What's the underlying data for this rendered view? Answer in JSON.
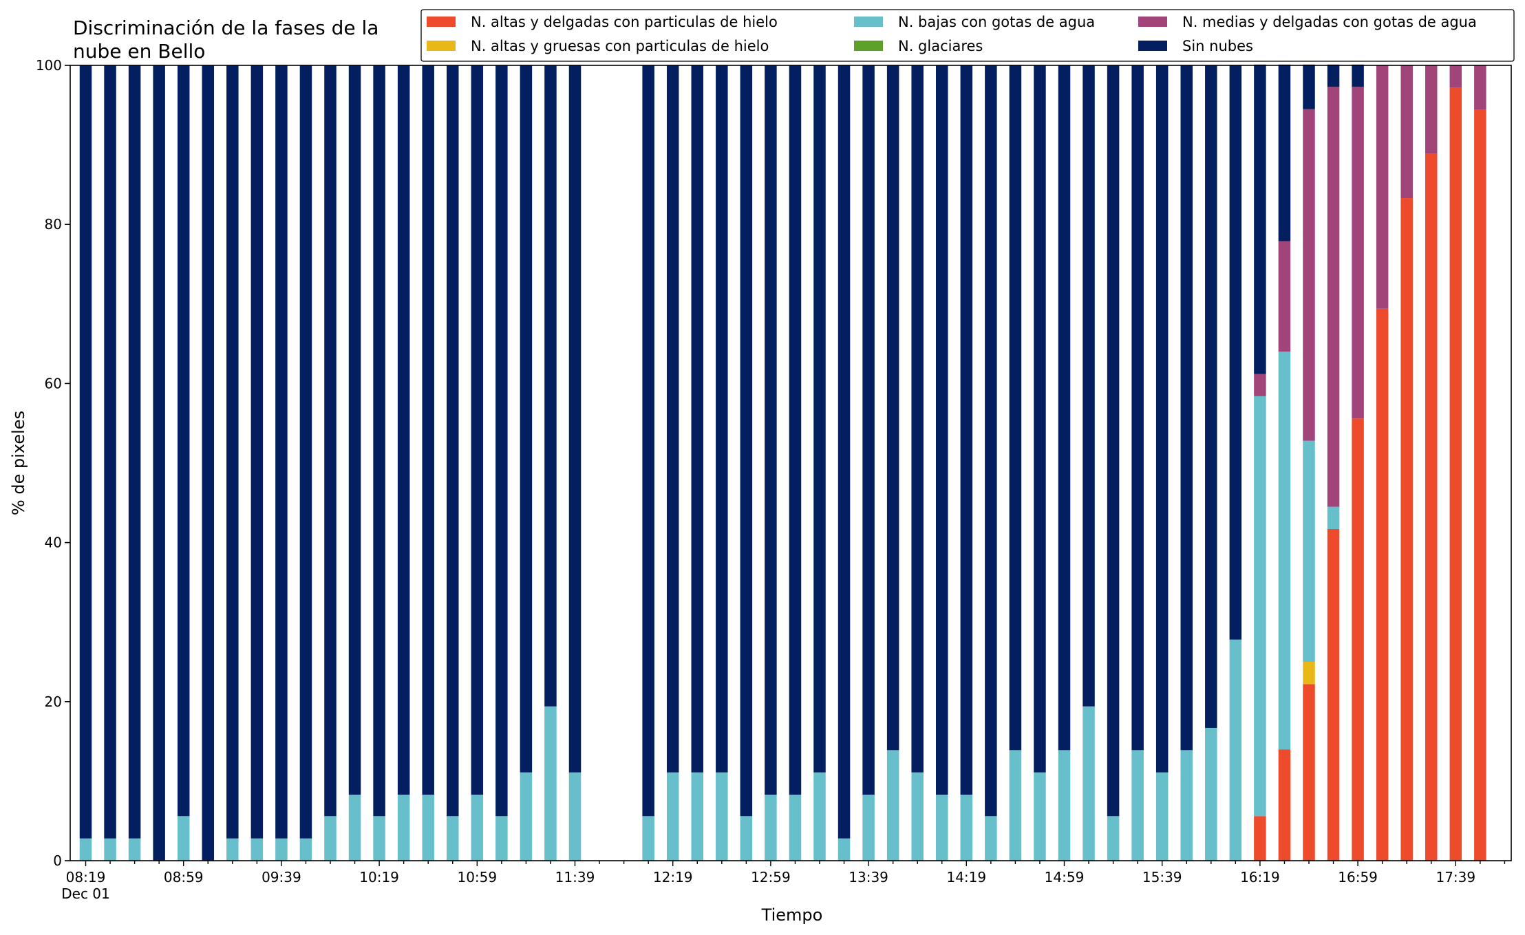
{
  "chart_data": {
    "type": "bar",
    "stacked": true,
    "title_lines": [
      "Discriminación de la fases de la",
      "nube en Bello"
    ],
    "xlabel": "Tiempo",
    "ylabel": "% de pixeles",
    "ylim": [
      0,
      100
    ],
    "yticks": [
      0,
      20,
      40,
      60,
      80,
      100
    ],
    "grid": false,
    "legend_position": "top-right",
    "x_tick_labels": [
      "08:19",
      "08:59",
      "09:39",
      "10:19",
      "10:59",
      "11:39",
      "12:19",
      "12:59",
      "13:39",
      "14:19",
      "14:59",
      "15:39",
      "16:19",
      "16:59",
      "17:39"
    ],
    "x_date_label": "Dec 01",
    "time_step_minutes": 10,
    "categories": [
      "08:19",
      "08:29",
      "08:39",
      "08:49",
      "08:59",
      "09:09",
      "09:19",
      "09:29",
      "09:39",
      "09:49",
      "09:59",
      "10:09",
      "10:19",
      "10:29",
      "10:39",
      "10:49",
      "10:59",
      "11:09",
      "11:19",
      "11:29",
      "11:39",
      "11:49",
      "11:59",
      "12:09",
      "12:19",
      "12:29",
      "12:39",
      "12:49",
      "12:59",
      "13:09",
      "13:19",
      "13:29",
      "13:39",
      "13:49",
      "13:59",
      "14:09",
      "14:19",
      "14:29",
      "14:39",
      "14:49",
      "14:59",
      "15:09",
      "15:19",
      "15:29",
      "15:39",
      "15:49",
      "15:59",
      "16:09",
      "16:19",
      "16:29",
      "16:39",
      "16:49",
      "16:59",
      "17:09",
      "17:19",
      "17:29",
      "17:39",
      "17:49"
    ],
    "series": [
      {
        "name": "N. altas y delgadas con particulas de hielo",
        "color": "#ee4a2c",
        "values": [
          0,
          0,
          0,
          0,
          0,
          0,
          0,
          0,
          0,
          0,
          0,
          0,
          0,
          0,
          0,
          0,
          0,
          0,
          0,
          0,
          0,
          null,
          null,
          0,
          0,
          0,
          0,
          0,
          0,
          0,
          0,
          0,
          0,
          0,
          0,
          0,
          0,
          0,
          0,
          0,
          0,
          0,
          0,
          0,
          0,
          0,
          0,
          0,
          5.6,
          14,
          22.2,
          41.7,
          55.6,
          69.4,
          83.3,
          88.9,
          97.2,
          94.4
        ]
      },
      {
        "name": "N. altas y gruesas con particulas de hielo",
        "color": "#e8b818",
        "values": [
          0,
          0,
          0,
          0,
          0,
          0,
          0,
          0,
          0,
          0,
          0,
          0,
          0,
          0,
          0,
          0,
          0,
          0,
          0,
          0,
          0,
          null,
          null,
          0,
          0,
          0,
          0,
          0,
          0,
          0,
          0,
          0,
          0,
          0,
          0,
          0,
          0,
          0,
          0,
          0,
          0,
          0,
          0,
          0,
          0,
          0,
          0,
          0,
          0,
          0,
          2.8,
          0,
          0,
          0,
          0,
          0,
          0,
          0
        ]
      },
      {
        "name": "N. bajas con gotas de agua",
        "color": "#66bfcb",
        "values": [
          2.8,
          2.8,
          2.8,
          0,
          5.6,
          0,
          2.8,
          2.8,
          2.8,
          2.8,
          5.6,
          8.3,
          5.6,
          8.3,
          8.3,
          5.6,
          8.3,
          5.6,
          11.1,
          19.4,
          11.1,
          null,
          null,
          5.6,
          11.1,
          11.1,
          11.1,
          5.6,
          8.3,
          8.3,
          11.1,
          2.8,
          8.3,
          13.9,
          11.1,
          8.3,
          8.3,
          5.6,
          13.9,
          11.1,
          13.9,
          19.4,
          5.6,
          13.9,
          11.1,
          13.9,
          16.7,
          27.8,
          52.8,
          50,
          27.8,
          2.8,
          0,
          0,
          0,
          0,
          0,
          0
        ]
      },
      {
        "name": "N. glaciares",
        "color": "#5fa02a",
        "values": [
          0,
          0,
          0,
          0,
          0,
          0,
          0,
          0,
          0,
          0,
          0,
          0,
          0,
          0,
          0,
          0,
          0,
          0,
          0,
          0,
          0,
          null,
          null,
          0,
          0,
          0,
          0,
          0,
          0,
          0,
          0,
          0,
          0,
          0,
          0,
          0,
          0,
          0,
          0,
          0,
          0,
          0,
          0,
          0,
          0,
          0,
          0,
          0,
          0,
          0,
          0,
          0,
          0,
          0,
          0,
          0,
          0,
          0
        ]
      },
      {
        "name": "N. medias y delgadas con gotas de agua",
        "color": "#a1447a",
        "values": [
          0,
          0,
          0,
          0,
          0,
          0,
          0,
          0,
          0,
          0,
          0,
          0,
          0,
          0,
          0,
          0,
          0,
          0,
          0,
          0,
          0,
          null,
          null,
          0,
          0,
          0,
          0,
          0,
          0,
          0,
          0,
          0,
          0,
          0,
          0,
          0,
          0,
          0,
          0,
          0,
          0,
          0,
          0,
          0,
          0,
          0,
          0,
          0,
          2.8,
          13.9,
          41.7,
          52.8,
          41.7,
          30.6,
          16.7,
          11.1,
          2.8,
          5.6
        ]
      },
      {
        "name": "Sin nubes",
        "color": "#041f5f",
        "values": [
          97.2,
          97.2,
          97.2,
          100,
          94.4,
          100,
          97.2,
          97.2,
          97.2,
          97.2,
          94.4,
          91.7,
          94.4,
          91.7,
          91.7,
          94.4,
          91.7,
          94.4,
          88.9,
          80.6,
          88.9,
          null,
          null,
          94.4,
          88.9,
          88.9,
          88.9,
          94.4,
          91.7,
          91.7,
          88.9,
          97.2,
          91.7,
          86.1,
          88.9,
          91.7,
          91.7,
          94.4,
          86.1,
          88.9,
          86.1,
          80.6,
          94.4,
          86.1,
          88.9,
          86.1,
          83.3,
          72.2,
          38.9,
          22.2,
          5.6,
          2.8,
          2.8,
          0,
          0,
          0,
          0,
          0
        ]
      }
    ]
  }
}
